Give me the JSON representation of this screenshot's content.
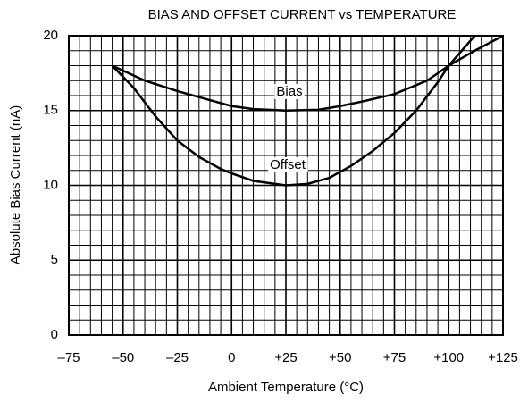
{
  "chart_data": {
    "type": "line",
    "title": "BIAS AND OFFSET CURRENT vs TEMPERATURE",
    "x_label": "Ambient Temperature (°C)",
    "y_label": "Absolute Bias Current (nA)",
    "xlim": [
      -75,
      125
    ],
    "xticks": [
      {
        "value": -75,
        "label": "–75"
      },
      {
        "value": -50,
        "label": "–50"
      },
      {
        "value": -25,
        "label": "–25"
      },
      0,
      {
        "value": 25,
        "label": "+25"
      },
      {
        "value": 50,
        "label": "+50"
      },
      {
        "value": 75,
        "label": "+75"
      },
      {
        "value": 100,
        "label": "+100"
      },
      {
        "value": 125,
        "label": "+125"
      }
    ],
    "ylim": [
      0,
      20
    ],
    "yticks": [
      0,
      5,
      10,
      15,
      20
    ],
    "grid": true,
    "series": [
      {
        "name": "Bias",
        "color": "#000000",
        "x": [
          -55,
          -40,
          -25,
          -10,
          0,
          10,
          25,
          40,
          50,
          60,
          75,
          90,
          100,
          112,
          125
        ],
        "values": [
          18,
          17,
          16.3,
          15.7,
          15.3,
          15.1,
          15,
          15.05,
          15.3,
          15.6,
          16.1,
          17,
          18,
          19,
          20
        ]
      },
      {
        "name": "Offset",
        "color": "#000000",
        "x": [
          -55,
          -45,
          -35,
          -25,
          -15,
          -5,
          0,
          10,
          25,
          35,
          45,
          55,
          65,
          75,
          85,
          95,
          100,
          106,
          112
        ],
        "values": [
          18,
          16.5,
          14.6,
          13,
          11.9,
          11.1,
          10.8,
          10.3,
          10,
          10.1,
          10.5,
          11.3,
          12.3,
          13.5,
          15,
          16.9,
          18,
          19,
          20
        ]
      }
    ]
  }
}
